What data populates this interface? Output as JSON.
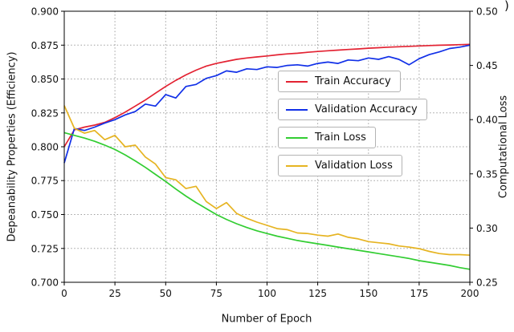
{
  "figure": {
    "corner_text": ")"
  },
  "chart_data": {
    "type": "line",
    "title": "",
    "xlabel": "Number of Epoch",
    "ylabel_left": "Depeanability Properties (Efficiency)",
    "ylabel_right": "Computational Loss",
    "xlim": [
      0,
      200
    ],
    "left_ylim": [
      0.7,
      0.9
    ],
    "right_ylim": [
      0.25,
      0.5
    ],
    "xticks": [
      0,
      25,
      50,
      75,
      100,
      125,
      150,
      175,
      200
    ],
    "left_ytick_values": [
      0.7,
      0.725,
      0.75,
      0.775,
      0.8,
      0.825,
      0.85,
      0.875,
      0.9
    ],
    "left_ytick_labels": [
      "0.700",
      "0.725",
      "0.750",
      "0.775",
      "0.800",
      "0.825",
      "0.850",
      "0.875",
      "0.900"
    ],
    "right_ytick_values": [
      0.25,
      0.3,
      0.35,
      0.4,
      0.45,
      0.5
    ],
    "right_ytick_labels": [
      "0.25",
      "0.30",
      "0.35",
      "0.40",
      "0.45",
      "0.50"
    ],
    "grid": true,
    "grid_style": "dotted",
    "legend_position": "center-right, stacked framed boxes",
    "x": [
      0,
      5,
      10,
      15,
      20,
      25,
      30,
      35,
      40,
      45,
      50,
      55,
      60,
      65,
      70,
      75,
      80,
      85,
      90,
      95,
      100,
      105,
      110,
      115,
      120,
      125,
      130,
      135,
      140,
      145,
      150,
      155,
      160,
      165,
      170,
      175,
      180,
      185,
      190,
      195,
      200
    ],
    "series": [
      {
        "name": "Train Accuracy",
        "axis": "left",
        "color": "#e32232",
        "values": [
          0.8,
          0.8125,
          0.8145,
          0.816,
          0.818,
          0.8215,
          0.8255,
          0.83,
          0.8345,
          0.8395,
          0.8445,
          0.849,
          0.853,
          0.8565,
          0.8595,
          0.8615,
          0.863,
          0.8645,
          0.8655,
          0.8663,
          0.867,
          0.8678,
          0.8685,
          0.869,
          0.8697,
          0.8703,
          0.8708,
          0.8713,
          0.8718,
          0.8722,
          0.8727,
          0.8731,
          0.8735,
          0.8738,
          0.8741,
          0.8744,
          0.8747,
          0.8749,
          0.8751,
          0.8753,
          0.8755
        ]
      },
      {
        "name": "Validation Accuracy",
        "axis": "left",
        "color": "#1130e8",
        "values": [
          0.788,
          0.8135,
          0.812,
          0.8145,
          0.8175,
          0.82,
          0.8235,
          0.826,
          0.8315,
          0.83,
          0.8385,
          0.836,
          0.8445,
          0.846,
          0.8505,
          0.8525,
          0.856,
          0.855,
          0.8575,
          0.857,
          0.859,
          0.8585,
          0.86,
          0.8605,
          0.8595,
          0.8615,
          0.8625,
          0.8615,
          0.864,
          0.8635,
          0.8655,
          0.8645,
          0.8665,
          0.8645,
          0.8605,
          0.865,
          0.868,
          0.87,
          0.8725,
          0.8735,
          0.875
        ]
      },
      {
        "name": "Train Loss",
        "axis": "right",
        "color": "#32cd32",
        "values": [
          0.388,
          0.3855,
          0.383,
          0.38,
          0.3765,
          0.3725,
          0.3675,
          0.362,
          0.356,
          0.3495,
          0.343,
          0.336,
          0.3295,
          0.3235,
          0.318,
          0.3125,
          0.308,
          0.304,
          0.3005,
          0.2975,
          0.295,
          0.2925,
          0.2905,
          0.2885,
          0.287,
          0.2855,
          0.284,
          0.2825,
          0.281,
          0.2795,
          0.278,
          0.2765,
          0.275,
          0.2735,
          0.272,
          0.27,
          0.2685,
          0.267,
          0.2655,
          0.2635,
          0.262
        ]
      },
      {
        "name": "Validation Loss",
        "axis": "right",
        "color": "#e6b422",
        "values": [
          0.413,
          0.392,
          0.3875,
          0.39,
          0.3815,
          0.3855,
          0.375,
          0.3765,
          0.3655,
          0.359,
          0.3465,
          0.3445,
          0.3365,
          0.3385,
          0.3245,
          0.318,
          0.3235,
          0.3135,
          0.309,
          0.3055,
          0.3025,
          0.2995,
          0.2985,
          0.2955,
          0.295,
          0.2935,
          0.2925,
          0.2945,
          0.2915,
          0.29,
          0.2875,
          0.2865,
          0.2855,
          0.2835,
          0.2825,
          0.281,
          0.2785,
          0.2765,
          0.2755,
          0.2755,
          0.275
        ]
      }
    ]
  }
}
